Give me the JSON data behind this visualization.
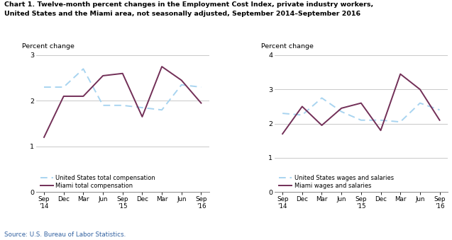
{
  "title_line1": "Chart 1. Twelve-month percent changes in the Employment Cost Index, private industry workers,",
  "title_line2": "United States and the Miami area, not seasonally adjusted, September 2014–September 2016",
  "source": "Source: U.S. Bureau of Labor Statistics.",
  "x_labels": [
    "Sep\n'14",
    "Dec",
    "Mar",
    "Jun",
    "Sep\n'15",
    "Dec",
    "Mar",
    "Jun",
    "Sep\n'16"
  ],
  "chart1": {
    "ylabel": "Percent change",
    "ylim": [
      0.0,
      3.0
    ],
    "yticks": [
      0.0,
      1.0,
      2.0,
      3.0
    ],
    "us_total_compensation": [
      2.3,
      2.3,
      2.7,
      1.9,
      1.9,
      1.85,
      1.8,
      2.35,
      2.3
    ],
    "miami_total_compensation": [
      1.2,
      2.1,
      2.1,
      2.55,
      2.6,
      1.65,
      2.75,
      2.45,
      1.95
    ],
    "us_label": "United States total compensation",
    "miami_label": "Miami total compensation"
  },
  "chart2": {
    "ylabel": "Percent change",
    "ylim": [
      0.0,
      4.0
    ],
    "yticks": [
      0.0,
      1.0,
      2.0,
      3.0,
      4.0
    ],
    "us_wages_salaries": [
      2.3,
      2.25,
      2.75,
      2.35,
      2.1,
      2.1,
      2.05,
      2.6,
      2.4
    ],
    "miami_wages_salaries": [
      1.7,
      2.5,
      1.95,
      2.45,
      2.6,
      1.8,
      3.45,
      3.0,
      2.1
    ],
    "us_label": "United States wages and salaries",
    "miami_label": "Miami wages and salaries"
  },
  "us_color": "#A8D4F0",
  "miami_color": "#722F57",
  "linewidth": 1.4,
  "bg_color": "#FFFFFF"
}
